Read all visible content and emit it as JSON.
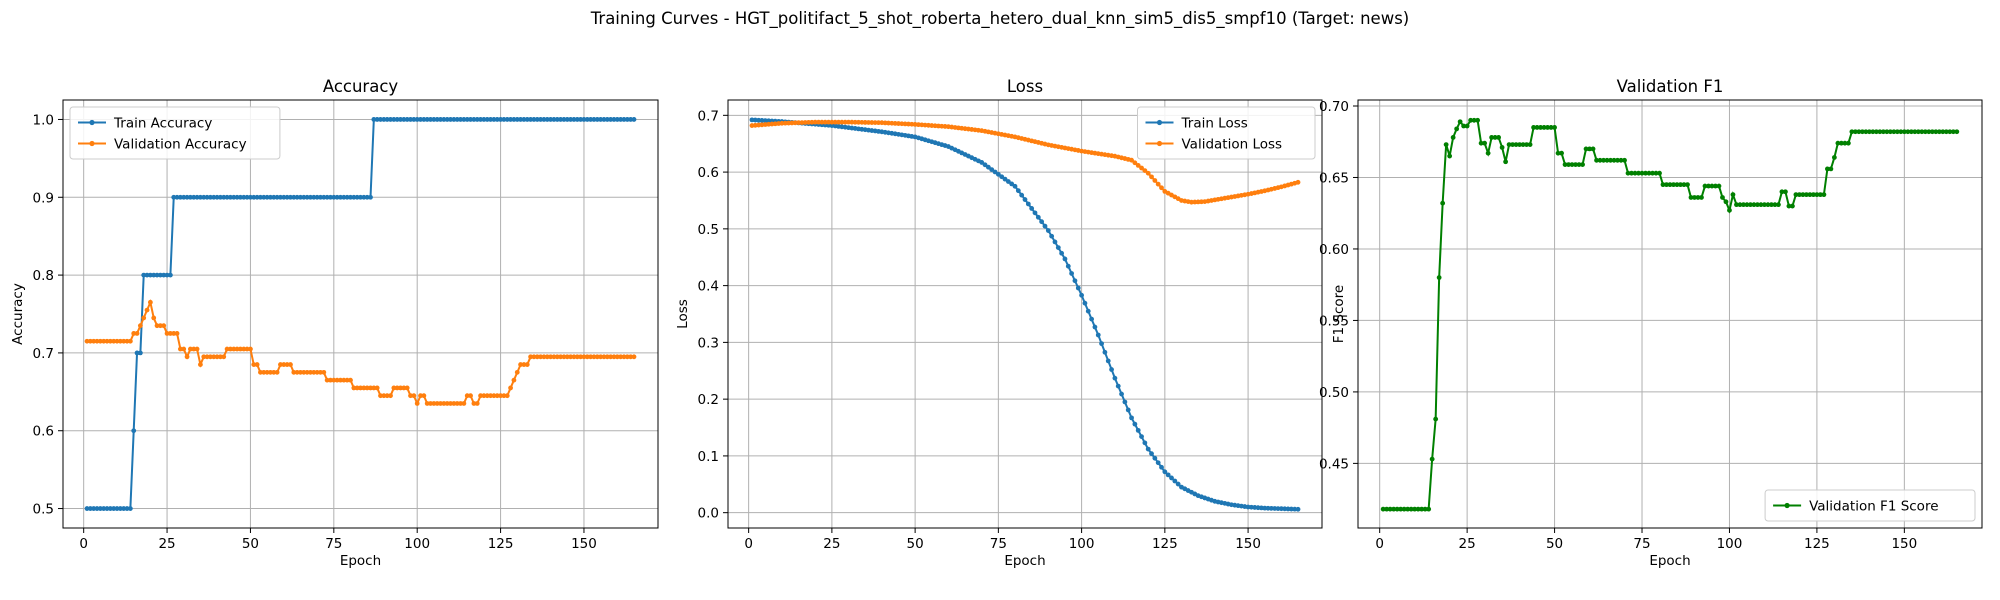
{
  "figure": {
    "title": "Training Curves - HGT_politifact_5_shot_roberta_hetero_dual_knn_sim5_dis5_smpf10 (Target: news)"
  },
  "chart_data": [
    {
      "type": "line",
      "title": "Accuracy",
      "xlabel": "Epoch",
      "ylabel": "Accuracy",
      "xlim": [
        -6.2,
        172.2
      ],
      "ylim": [
        0.475,
        1.025
      ],
      "xticks": [
        0,
        25,
        50,
        75,
        100,
        125,
        150
      ],
      "yticks": [
        0.5,
        0.6,
        0.7,
        0.8,
        0.9,
        1.0
      ],
      "ytick_labels": [
        "0.5",
        "0.6",
        "0.7",
        "0.8",
        "0.9",
        "1.0"
      ],
      "grid": true,
      "legend": "upper left",
      "series": [
        {
          "name": "Train Accuracy",
          "color": "#1f77b4",
          "segments": [
            [
              1,
              14,
              0.5
            ],
            [
              15,
              15,
              0.6
            ],
            [
              16,
              17,
              0.7
            ],
            [
              18,
              26,
              0.8
            ],
            [
              27,
              86,
              0.9
            ],
            [
              87,
              165,
              1.0
            ]
          ]
        },
        {
          "name": "Validation Accuracy",
          "color": "#ff7f0e",
          "segments": [
            [
              1,
              14,
              0.715
            ],
            [
              15,
              16,
              0.725
            ],
            [
              17,
              17,
              0.735
            ],
            [
              18,
              18,
              0.745
            ],
            [
              19,
              19,
              0.755
            ],
            [
              20,
              20,
              0.765
            ],
            [
              21,
              21,
              0.745
            ],
            [
              22,
              24,
              0.735
            ],
            [
              25,
              28,
              0.725
            ],
            [
              29,
              30,
              0.705
            ],
            [
              31,
              31,
              0.695
            ],
            [
              32,
              34,
              0.705
            ],
            [
              35,
              35,
              0.685
            ],
            [
              36,
              42,
              0.695
            ],
            [
              43,
              50,
              0.705
            ],
            [
              51,
              52,
              0.685
            ],
            [
              53,
              58,
              0.675
            ],
            [
              59,
              62,
              0.685
            ],
            [
              63,
              72,
              0.675
            ],
            [
              73,
              80,
              0.665
            ],
            [
              81,
              88,
              0.655
            ],
            [
              89,
              92,
              0.645
            ],
            [
              93,
              97,
              0.655
            ],
            [
              98,
              99,
              0.645
            ],
            [
              100,
              100,
              0.635
            ],
            [
              101,
              102,
              0.645
            ],
            [
              103,
              114,
              0.635
            ],
            [
              115,
              116,
              0.645
            ],
            [
              117,
              118,
              0.635
            ],
            [
              119,
              120,
              0.645
            ],
            [
              121,
              127,
              0.645
            ],
            [
              128,
              128,
              0.655
            ],
            [
              129,
              129,
              0.665
            ],
            [
              130,
              130,
              0.675
            ],
            [
              131,
              133,
              0.685
            ],
            [
              134,
              165,
              0.695
            ]
          ]
        }
      ]
    },
    {
      "type": "line",
      "title": "Loss",
      "xlabel": "Epoch",
      "ylabel": "Loss",
      "xlim": [
        -6.2,
        172.2
      ],
      "ylim": [
        -0.027,
        0.727
      ],
      "xticks": [
        0,
        25,
        50,
        75,
        100,
        125,
        150
      ],
      "yticks": [
        0.0,
        0.1,
        0.2,
        0.3,
        0.4,
        0.5,
        0.6,
        0.7
      ],
      "ytick_labels": [
        "0.0",
        "0.1",
        "0.2",
        "0.3",
        "0.4",
        "0.5",
        "0.6",
        "0.7"
      ],
      "grid": true,
      "legend": "upper right",
      "series": [
        {
          "name": "Train Loss",
          "color": "#1f77b4",
          "keypoints": [
            [
              1,
              0.692
            ],
            [
              10,
              0.689
            ],
            [
              25,
              0.682
            ],
            [
              40,
              0.671
            ],
            [
              50,
              0.662
            ],
            [
              60,
              0.645
            ],
            [
              70,
              0.617
            ],
            [
              80,
              0.575
            ],
            [
              90,
              0.497
            ],
            [
              95,
              0.447
            ],
            [
              100,
              0.383
            ],
            [
              105,
              0.313
            ],
            [
              110,
              0.237
            ],
            [
              115,
              0.167
            ],
            [
              120,
              0.112
            ],
            [
              125,
              0.072
            ],
            [
              130,
              0.045
            ],
            [
              135,
              0.03
            ],
            [
              140,
              0.02
            ],
            [
              145,
              0.014
            ],
            [
              150,
              0.01
            ],
            [
              155,
              0.008
            ],
            [
              160,
              0.007
            ],
            [
              165,
              0.006
            ]
          ]
        },
        {
          "name": "Validation Loss",
          "color": "#ff7f0e",
          "keypoints": [
            [
              1,
              0.682
            ],
            [
              10,
              0.686
            ],
            [
              20,
              0.688
            ],
            [
              30,
              0.688
            ],
            [
              40,
              0.687
            ],
            [
              50,
              0.684
            ],
            [
              60,
              0.68
            ],
            [
              70,
              0.673
            ],
            [
              80,
              0.662
            ],
            [
              90,
              0.648
            ],
            [
              100,
              0.637
            ],
            [
              110,
              0.628
            ],
            [
              115,
              0.621
            ],
            [
              120,
              0.598
            ],
            [
              125,
              0.566
            ],
            [
              130,
              0.55
            ],
            [
              133,
              0.547
            ],
            [
              137,
              0.548
            ],
            [
              145,
              0.556
            ],
            [
              150,
              0.561
            ],
            [
              155,
              0.567
            ],
            [
              160,
              0.574
            ],
            [
              165,
              0.582
            ]
          ]
        }
      ]
    },
    {
      "type": "line",
      "title": "Validation F1",
      "xlabel": "Epoch",
      "ylabel": "F1 Score",
      "xlim": [
        -6.2,
        172.2
      ],
      "ylim": [
        0.4048,
        0.7042
      ],
      "xticks": [
        0,
        25,
        50,
        75,
        100,
        125,
        150
      ],
      "yticks": [
        0.45,
        0.5,
        0.55,
        0.6,
        0.65,
        0.7
      ],
      "ytick_labels": [
        "0.45",
        "0.50",
        "0.55",
        "0.60",
        "0.65",
        "0.70"
      ],
      "grid": true,
      "legend": "lower right",
      "series": [
        {
          "name": "Validation F1 Score",
          "color": "#008000",
          "segments": [
            [
              1,
              14,
              0.418
            ],
            [
              15,
              15,
              0.453
            ],
            [
              16,
              16,
              0.481
            ],
            [
              17,
              17,
              0.58
            ],
            [
              18,
              18,
              0.632
            ],
            [
              19,
              19,
              0.673
            ],
            [
              20,
              20,
              0.665
            ],
            [
              21,
              21,
              0.678
            ],
            [
              22,
              22,
              0.684
            ],
            [
              23,
              23,
              0.689
            ],
            [
              24,
              25,
              0.686
            ],
            [
              26,
              28,
              0.69
            ],
            [
              29,
              30,
              0.674
            ],
            [
              31,
              31,
              0.667
            ],
            [
              32,
              34,
              0.678
            ],
            [
              35,
              35,
              0.671
            ],
            [
              36,
              36,
              0.661
            ],
            [
              37,
              43,
              0.673
            ],
            [
              44,
              50,
              0.685
            ],
            [
              51,
              52,
              0.667
            ],
            [
              53,
              58,
              0.659
            ],
            [
              59,
              61,
              0.67
            ],
            [
              62,
              70,
              0.662
            ],
            [
              71,
              80,
              0.653
            ],
            [
              81,
              88,
              0.645
            ],
            [
              89,
              92,
              0.636
            ],
            [
              93,
              97,
              0.644
            ],
            [
              98,
              98,
              0.636
            ],
            [
              99,
              99,
              0.633
            ],
            [
              100,
              100,
              0.627
            ],
            [
              101,
              101,
              0.638
            ],
            [
              102,
              114,
              0.631
            ],
            [
              115,
              116,
              0.64
            ],
            [
              117,
              118,
              0.63
            ],
            [
              119,
              127,
              0.638
            ],
            [
              128,
              129,
              0.656
            ],
            [
              130,
              130,
              0.664
            ],
            [
              131,
              134,
              0.674
            ],
            [
              135,
              165,
              0.682
            ]
          ]
        }
      ]
    }
  ]
}
